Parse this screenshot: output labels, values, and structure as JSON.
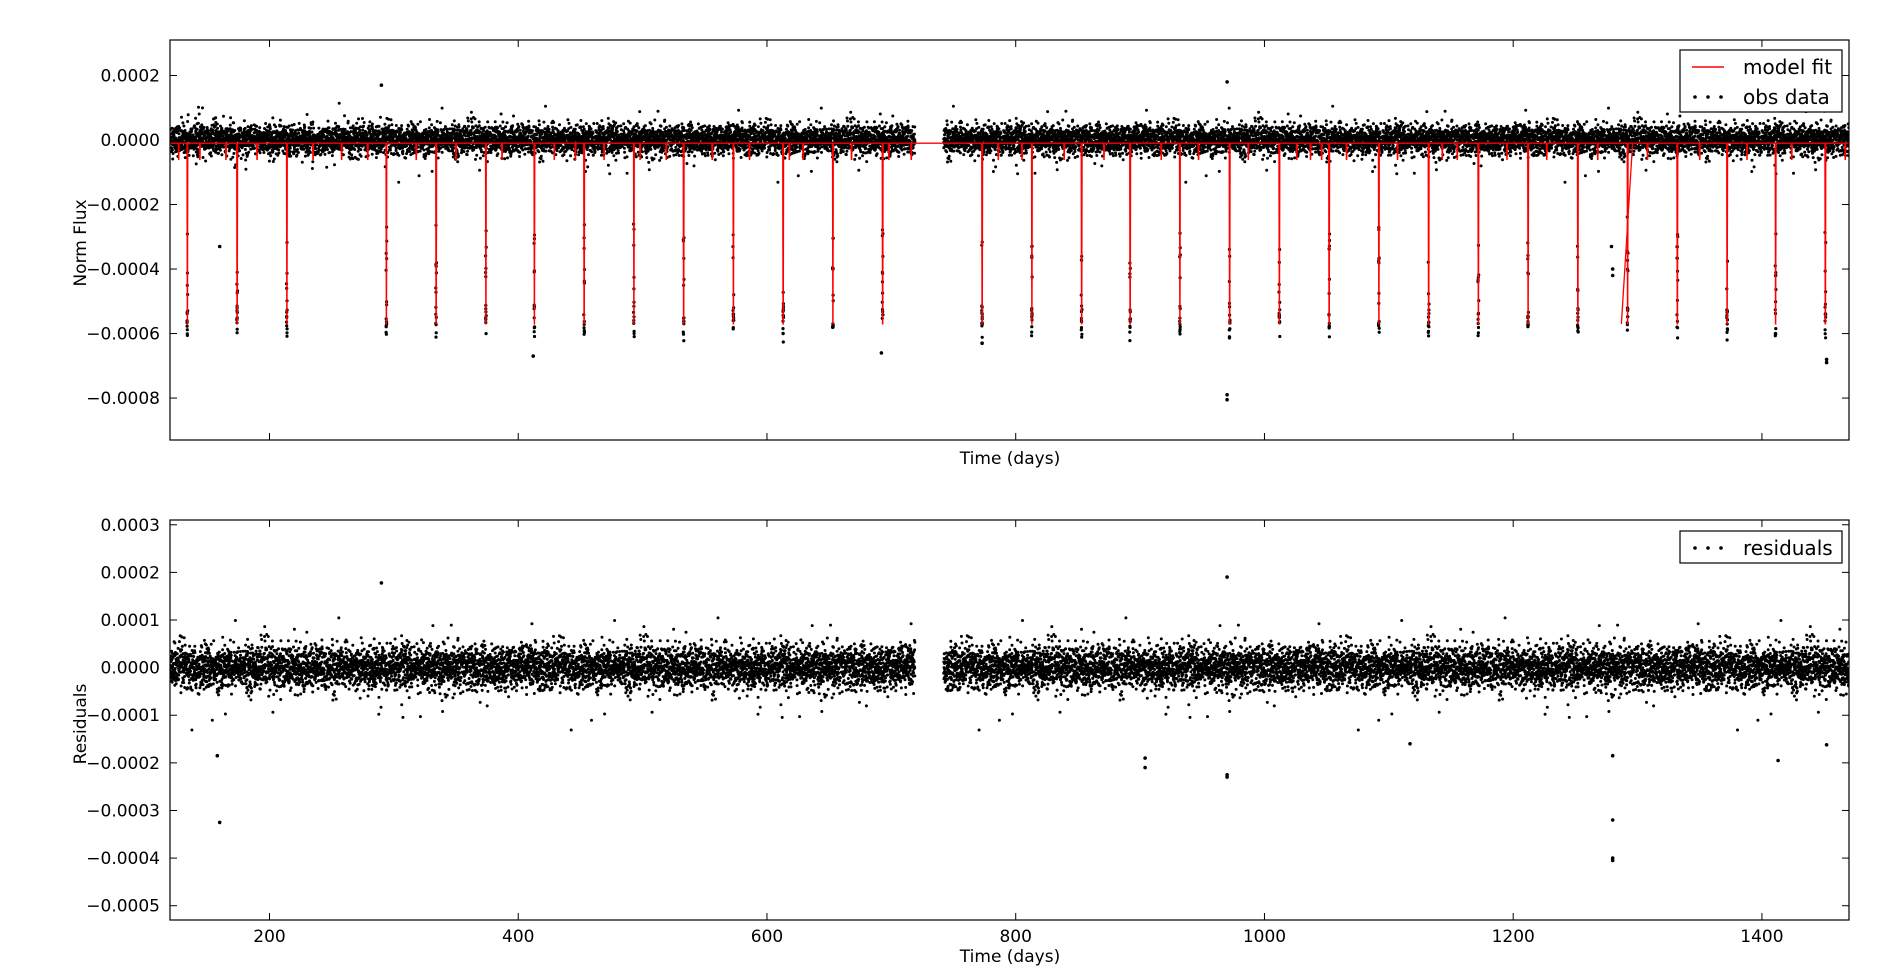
{
  "chart_data": [
    {
      "type": "scatter",
      "xlabel": "Time (days)",
      "ylabel": "Norm Flux",
      "xlim": [
        120,
        1470
      ],
      "ylim": [
        -0.00093,
        0.00031
      ],
      "xticks": [
        200,
        400,
        600,
        800,
        1000,
        1200,
        1400
      ],
      "xtick_labels_visible": false,
      "yticks": [
        0.0002,
        0.0,
        -0.0002,
        -0.0004,
        -0.0006,
        -0.0008
      ],
      "ytick_labels": [
        "0.0002",
        "0.0000",
        "−0.0002",
        "−0.0004",
        "−0.0006",
        "−0.0008"
      ],
      "legend": {
        "placement": "top-right",
        "entries": [
          "model fit",
          "obs data"
        ]
      },
      "series": [
        {
          "name": "model fit",
          "kind": "line",
          "color": "#ff0000",
          "baseline": -1e-05,
          "transit_depth": -0.00057,
          "transit_times": [
            134,
            174,
            214,
            294,
            334,
            374,
            413,
            453,
            493,
            533,
            573,
            613,
            653,
            693,
            773,
            813,
            853,
            892,
            932,
            972,
            1012,
            1052,
            1092,
            1132,
            1172,
            1212,
            1252,
            1292,
            1332,
            1372,
            1411,
            1451
          ],
          "minor_dip_times": [
            127,
            144,
            165,
            190,
            235,
            258,
            279,
            318,
            350,
            387,
            429,
            446,
            469,
            498,
            519,
            556,
            586,
            618,
            629,
            668,
            698,
            716,
            786,
            805,
            839,
            871,
            917,
            947,
            987,
            1026,
            1037,
            1046,
            1066,
            1107,
            1143,
            1155,
            1195,
            1227,
            1268,
            1308,
            1350,
            1388,
            1424,
            1467
          ],
          "minor_dip_depth": -6e-05,
          "gaps": [
            [
              720,
              745
            ],
            [
              1273,
              1296
            ]
          ]
        },
        {
          "name": "obs data",
          "kind": "points",
          "color": "#000000",
          "scatter_sigma": 3e-05,
          "segments": [
            [
              120,
              719
            ],
            [
              742,
              1470
            ]
          ],
          "outliers": [
            [
              160,
              -0.00033
            ],
            [
              290,
              0.00017
            ],
            [
              970,
              0.00018
            ],
            [
              970,
              -0.00079
            ],
            [
              970,
              -0.000805
            ],
            [
              692,
              -0.00066
            ],
            [
              412,
              -0.00067
            ],
            [
              773,
              -0.00063
            ],
            [
              1452,
              -0.00069
            ],
            [
              1452,
              -0.00068
            ],
            [
              1280,
              -0.0004
            ],
            [
              1280,
              -0.00042
            ],
            [
              1279,
              -0.00033
            ]
          ]
        }
      ]
    },
    {
      "type": "scatter",
      "xlabel": "Time (days)",
      "ylabel": "Residuals",
      "xlim": [
        120,
        1470
      ],
      "ylim": [
        -0.00053,
        0.00031
      ],
      "xticks": [
        200,
        400,
        600,
        800,
        1000,
        1200,
        1400
      ],
      "xtick_labels": [
        "200",
        "400",
        "600",
        "800",
        "1000",
        "1200",
        "1400"
      ],
      "yticks": [
        0.0003,
        0.0002,
        0.0001,
        0.0,
        -0.0001,
        -0.0002,
        -0.0003,
        -0.0004,
        -0.0005
      ],
      "ytick_labels": [
        "0.0003",
        "0.0002",
        "0.0001",
        "0.0000",
        "−0.0001",
        "−0.0002",
        "−0.0003",
        "−0.0004",
        "−0.0005"
      ],
      "legend": {
        "placement": "top-right",
        "entries": [
          "residuals"
        ]
      },
      "series": [
        {
          "name": "residuals",
          "kind": "points",
          "color": "#000000",
          "scatter_sigma": 3e-05,
          "segments": [
            [
              120,
              719
            ],
            [
              742,
              1470
            ]
          ],
          "outliers": [
            [
              160,
              -0.000325
            ],
            [
              158,
              -0.000185
            ],
            [
              290,
              0.000178
            ],
            [
              970,
              0.00019
            ],
            [
              970,
              -0.000225
            ],
            [
              970,
              -0.00023
            ],
            [
              904,
              -0.00019
            ],
            [
              904,
              -0.00021
            ],
            [
              1280,
              -0.0004
            ],
            [
              1280,
              -0.000405
            ],
            [
              1280,
              -0.00032
            ],
            [
              1280,
              -0.000185
            ],
            [
              1413,
              -0.000195
            ],
            [
              1452,
              -0.000162
            ],
            [
              1117,
              -0.00016
            ]
          ]
        }
      ]
    }
  ]
}
